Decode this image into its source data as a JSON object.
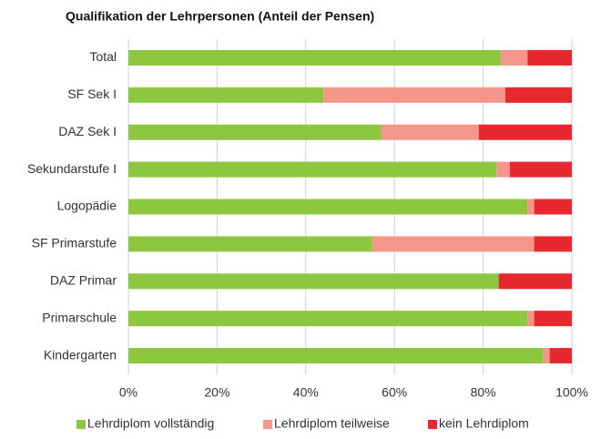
{
  "chart_data": {
    "type": "stacked_barh",
    "title": "Qualifikation der Lehrpersonen (Anteil der Pensen)",
    "categories": [
      "Total",
      "SF Sek I",
      "DAZ Sek I",
      "Sekundarstufe I",
      "Logopädie",
      "SF Primarstufe",
      "DAZ Primar",
      "Primarschule",
      "Kindergarten"
    ],
    "series": [
      {
        "name": "Lehrdiplom vollständig",
        "color": "#8dc63f",
        "values": [
          84,
          44,
          57,
          83,
          90,
          55,
          83.5,
          90,
          93.5
        ]
      },
      {
        "name": "Lehrdiplom teilweise",
        "color": "#f4978a",
        "values": [
          6,
          41,
          22,
          3,
          1.5,
          36.5,
          0,
          1.5,
          1.5
        ]
      },
      {
        "name": "kein Lehrdiplom",
        "color": "#e8282f",
        "values": [
          10,
          15,
          21,
          14,
          8.5,
          8.5,
          16.5,
          8.5,
          5
        ]
      }
    ],
    "xlim": [
      0,
      100
    ],
    "xticks": [
      {
        "value": 0,
        "label": "0%"
      },
      {
        "value": 20,
        "label": "20%"
      },
      {
        "value": 40,
        "label": "40%"
      },
      {
        "value": 60,
        "label": "60%"
      },
      {
        "value": 80,
        "label": "80%"
      },
      {
        "value": 100,
        "label": "100%"
      }
    ],
    "grid": true,
    "legend": "bottom"
  }
}
